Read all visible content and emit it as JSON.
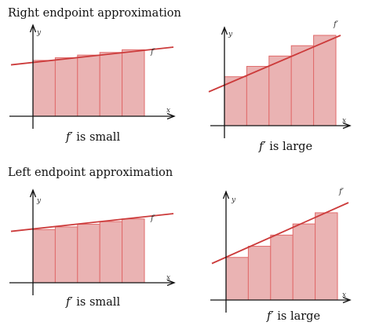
{
  "sections": [
    {
      "title": "Right endpoint approximation",
      "panels": [
        {
          "caption_f": "f′",
          "caption_rest": " is small",
          "y_label": "y",
          "x_label": "x",
          "curve_label": "f′",
          "rectangle_heights": [
            0.63,
            0.66,
            0.69,
            0.72,
            0.75
          ],
          "line": {
            "start": 0.58,
            "end": 0.78
          }
        },
        {
          "caption_f": "f′",
          "caption_rest": " is large",
          "y_label": "y",
          "x_label": "x",
          "curve_label": "f′",
          "rectangle_heights": [
            0.52,
            0.63,
            0.74,
            0.85,
            0.96
          ],
          "line": {
            "start": 0.36,
            "end": 0.96
          }
        }
      ]
    },
    {
      "title": "Left endpoint approximation",
      "panels": [
        {
          "caption_f": "f′",
          "caption_rest": " is small",
          "y_label": "y",
          "x_label": "x",
          "curve_label": "f′",
          "rectangle_heights": [
            0.6,
            0.63,
            0.66,
            0.69,
            0.72
          ],
          "line": {
            "start": 0.58,
            "end": 0.78
          }
        },
        {
          "caption_f": "f′",
          "caption_rest": " is large",
          "y_label": "y",
          "x_label": "x",
          "curve_label": "f′",
          "rectangle_heights": [
            0.42,
            0.53,
            0.64,
            0.75,
            0.86
          ],
          "line": {
            "start": 0.36,
            "end": 0.96
          }
        }
      ]
    }
  ]
}
